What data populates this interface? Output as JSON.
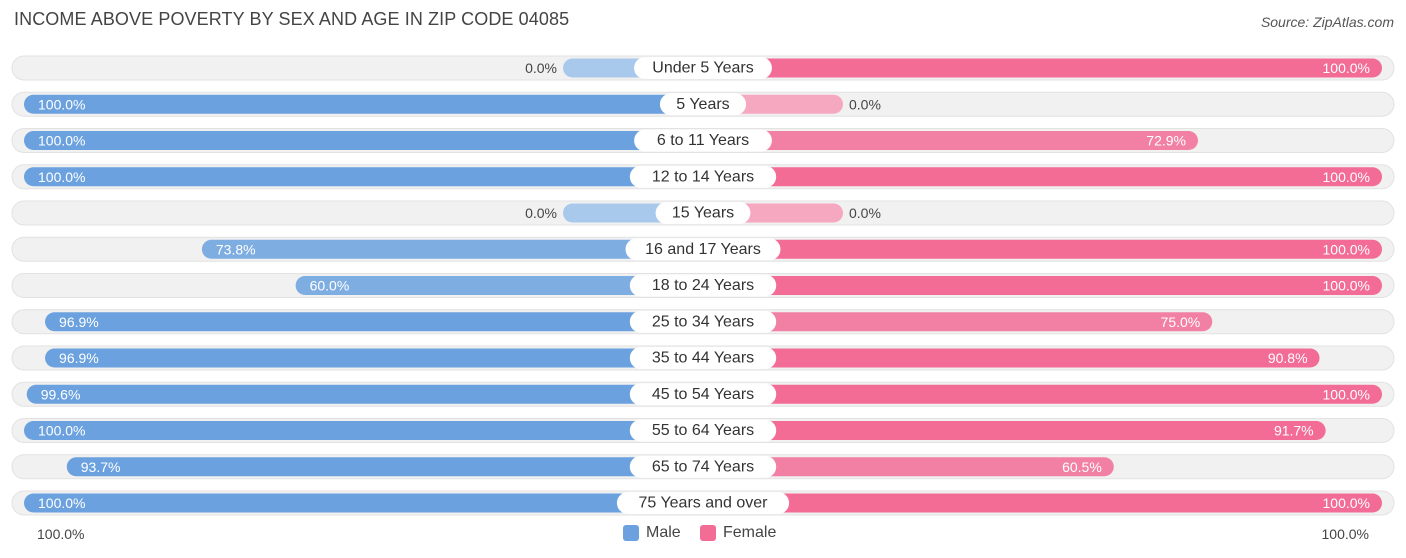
{
  "title": "INCOME ABOVE POVERTY BY SEX AND AGE IN ZIP CODE 04085",
  "source": "Source: ZipAtlas.com",
  "colors": {
    "male": "#6aa1de",
    "male_light": "#a9c9ec",
    "female": "#f26c96",
    "female_light": "#f6a8c1",
    "track": "#f1f1f1"
  },
  "legend": {
    "male_label": "Male",
    "female_label": "Female"
  },
  "axis": {
    "left_label": "100.0%",
    "right_label": "100.0%"
  },
  "chart_data": {
    "type": "bar",
    "orientation": "horizontal-diverging",
    "title": "INCOME ABOVE POVERTY BY SEX AND AGE IN ZIP CODE 04085",
    "categories": [
      "Under 5 Years",
      "5 Years",
      "6 to 11 Years",
      "12 to 14 Years",
      "15 Years",
      "16 and 17 Years",
      "18 to 24 Years",
      "25 to 34 Years",
      "35 to 44 Years",
      "45 to 54 Years",
      "55 to 64 Years",
      "65 to 74 Years",
      "75 Years and over"
    ],
    "series": [
      {
        "name": "Male",
        "values": [
          0.0,
          100.0,
          100.0,
          100.0,
          0.0,
          73.8,
          60.0,
          96.9,
          96.9,
          99.6,
          100.0,
          93.7,
          100.0
        ],
        "labels": [
          "0.0%",
          "100.0%",
          "100.0%",
          "100.0%",
          "0.0%",
          "73.8%",
          "60.0%",
          "96.9%",
          "96.9%",
          "99.6%",
          "100.0%",
          "93.7%",
          "100.0%"
        ]
      },
      {
        "name": "Female",
        "values": [
          100.0,
          0.0,
          72.9,
          100.0,
          0.0,
          100.0,
          100.0,
          75.0,
          90.8,
          100.0,
          91.7,
          60.5,
          100.0
        ],
        "labels": [
          "100.0%",
          "0.0%",
          "72.9%",
          "100.0%",
          "0.0%",
          "100.0%",
          "100.0%",
          "75.0%",
          "90.8%",
          "100.0%",
          "91.7%",
          "60.5%",
          "100.0%"
        ]
      }
    ],
    "xlim": [
      0,
      100
    ],
    "xlabel_left": "100.0%",
    "xlabel_right": "100.0%",
    "legend_position": "bottom-center"
  }
}
